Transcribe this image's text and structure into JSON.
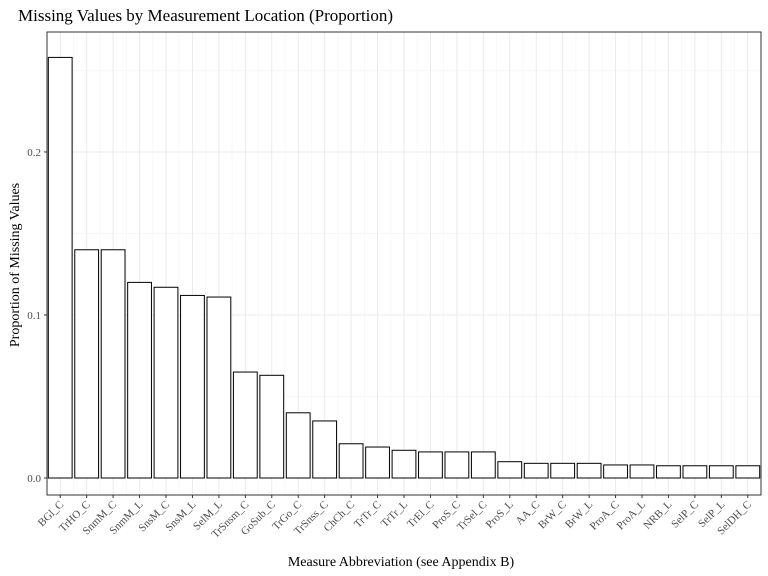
{
  "chart_data": {
    "type": "bar",
    "title": "Missing Values by Measurement Location (Proportion)",
    "xlabel": "Measure Abbreviation (see Appendix B)",
    "ylabel": "Proportion of Missing Values",
    "ylim": [
      0,
      0.265
    ],
    "yticks": [
      0.0,
      0.1,
      0.2
    ],
    "ytick_labels": [
      "0.0",
      "0.1",
      "0.2"
    ],
    "grid": true,
    "categories": [
      "BGl_C",
      "TrHO_C",
      "SnmM_C",
      "SnmM_L",
      "SnsM_C",
      "SnsM_L",
      "SelM_L",
      "TrSnsm_C",
      "GoSub_C",
      "TrGo_C",
      "TrSnss_C",
      "ChCh_C",
      "TrTr_C",
      "TrTr_L",
      "TrEl_C",
      "ProS_C",
      "TrSel_C",
      "ProS_L",
      "AA_C",
      "BrW_C",
      "BrW_L",
      "ProA_C",
      "ProA_L",
      "NRB_L",
      "SelP_C",
      "SelP_L",
      "SelDH_C"
    ],
    "values": [
      0.258,
      0.14,
      0.14,
      0.12,
      0.117,
      0.112,
      0.111,
      0.065,
      0.063,
      0.04,
      0.035,
      0.021,
      0.019,
      0.017,
      0.016,
      0.016,
      0.016,
      0.01,
      0.009,
      0.009,
      0.009,
      0.008,
      0.008,
      0.0075,
      0.0075,
      0.0075,
      0.0075
    ]
  }
}
